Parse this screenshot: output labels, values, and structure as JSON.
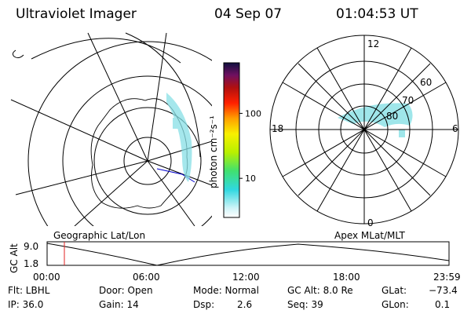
{
  "header": {
    "instrument": "Ultraviolet Imager",
    "date": "04 Sep 07",
    "time": "01:04:53 UT"
  },
  "geo_panel": {
    "label": "Geographic Lat/Lon"
  },
  "polar_panel": {
    "label": "Apex MLat/MLT",
    "mlt_labels": {
      "top": "12",
      "left": "18",
      "right": "6",
      "bottom": "0"
    },
    "lat_labels": [
      "60",
      "70",
      "80"
    ]
  },
  "colorbar": {
    "unit": "photon cm⁻²s⁻¹",
    "ticks": [
      {
        "label": "100",
        "value": 100
      },
      {
        "label": "10",
        "value": 10
      }
    ]
  },
  "timeline": {
    "ylabel": "GC Alt",
    "y_ticks": [
      "9.0",
      "1.8"
    ],
    "x_ticks": [
      "00:00",
      "06:00",
      "12:00",
      "18:00",
      "23:59"
    ]
  },
  "info": {
    "flt": "Flt: LBHL",
    "ip": "IP: 36.0",
    "door": "Door: Open",
    "gain": "Gain: 14",
    "mode": "Mode: Normal",
    "dsp_label": "Dsp:",
    "dsp_value": "2.6",
    "gcalt": "GC Alt: 8.0 Re",
    "seq": "Seq: 39",
    "glat_label": "GLat:",
    "glat_value": "−73.4",
    "glon_label": "GLon:",
    "glon_value": "0.1"
  }
}
